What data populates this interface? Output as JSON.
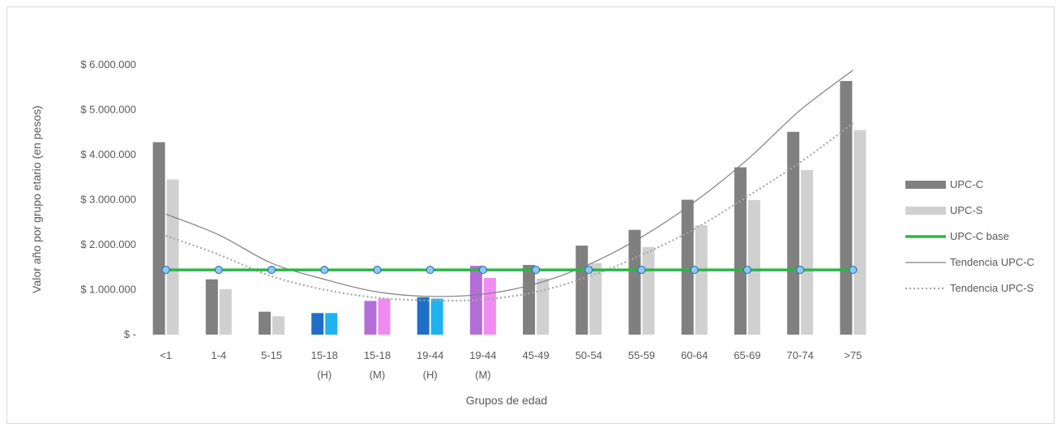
{
  "chart_data": {
    "type": "bar",
    "xlabel": "Grupos de edad",
    "ylabel": "Valor año por grupo etario (en pesos)",
    "ylim": [
      0,
      6000000
    ],
    "y_ticks": [
      0,
      1000000,
      2000000,
      3000000,
      4000000,
      5000000,
      6000000
    ],
    "y_tick_labels": [
      "$ -",
      "$ 1.000.000",
      "$ 2.000.000",
      "$ 3.000.000",
      "$ 4.000.000",
      "$ 5.000.000",
      "$ 6.000.000"
    ],
    "categories": [
      [
        "<1"
      ],
      [
        "1-4"
      ],
      [
        "5-15"
      ],
      [
        "15-18",
        "(H)"
      ],
      [
        "15-18",
        "(M)"
      ],
      [
        "19-44",
        "(H)"
      ],
      [
        "19-44",
        "(M)"
      ],
      [
        "45-49"
      ],
      [
        "50-54"
      ],
      [
        "55-59"
      ],
      [
        "60-64"
      ],
      [
        "65-69"
      ],
      [
        "70-74"
      ],
      [
        ">75"
      ]
    ],
    "series": [
      {
        "name": "UPC-C",
        "kind": "bar",
        "color": "#808080",
        "values": [
          4280000,
          1230000,
          510000,
          480000,
          750000,
          830000,
          1530000,
          1550000,
          1980000,
          2330000,
          3000000,
          3720000,
          4510000,
          5640000
        ],
        "bar_colors": [
          "#808080",
          "#808080",
          "#808080",
          "#1F6FC6",
          "#B26ED6",
          "#1F6FC6",
          "#B26ED6",
          "#808080",
          "#808080",
          "#808080",
          "#808080",
          "#808080",
          "#808080",
          "#808080"
        ]
      },
      {
        "name": "UPC-S",
        "kind": "bar",
        "color": "#D0D0D0",
        "values": [
          3450000,
          1010000,
          410000,
          480000,
          800000,
          800000,
          1260000,
          1250000,
          1590000,
          1950000,
          2430000,
          2990000,
          3660000,
          4550000
        ],
        "bar_colors": [
          "#D0D0D0",
          "#D0D0D0",
          "#D0D0D0",
          "#1EB2F0",
          "#F08BF0",
          "#1EB2F0",
          "#F08BF0",
          "#D0D0D0",
          "#D0D0D0",
          "#D0D0D0",
          "#D0D0D0",
          "#D0D0D0",
          "#D0D0D0",
          "#D0D0D0"
        ]
      },
      {
        "name": "UPC-C base",
        "kind": "line",
        "color": "#2DB548",
        "marker_color": "#8FC9F2",
        "marker_stroke": "#2E75B6",
        "values": [
          1440000,
          1440000,
          1440000,
          1440000,
          1440000,
          1440000,
          1440000,
          1440000,
          1440000,
          1440000,
          1440000,
          1440000,
          1440000,
          1440000
        ]
      },
      {
        "name": "Tendencia UPC-C",
        "kind": "trend",
        "color": "#7F7F7F",
        "style": "solid",
        "values": [
          2680000,
          2220000,
          1590000,
          1230000,
          950000,
          850000,
          900000,
          1130000,
          1560000,
          2170000,
          2950000,
          3890000,
          4990000,
          5880000
        ]
      },
      {
        "name": "Tendencia UPC-S",
        "kind": "trend",
        "color": "#A6A6A6",
        "style": "dotted",
        "values": [
          2200000,
          1780000,
          1300000,
          1000000,
          820000,
          760000,
          780000,
          950000,
          1290000,
          1770000,
          2350000,
          3070000,
          3830000,
          4700000
        ]
      }
    ],
    "legend": "right"
  }
}
